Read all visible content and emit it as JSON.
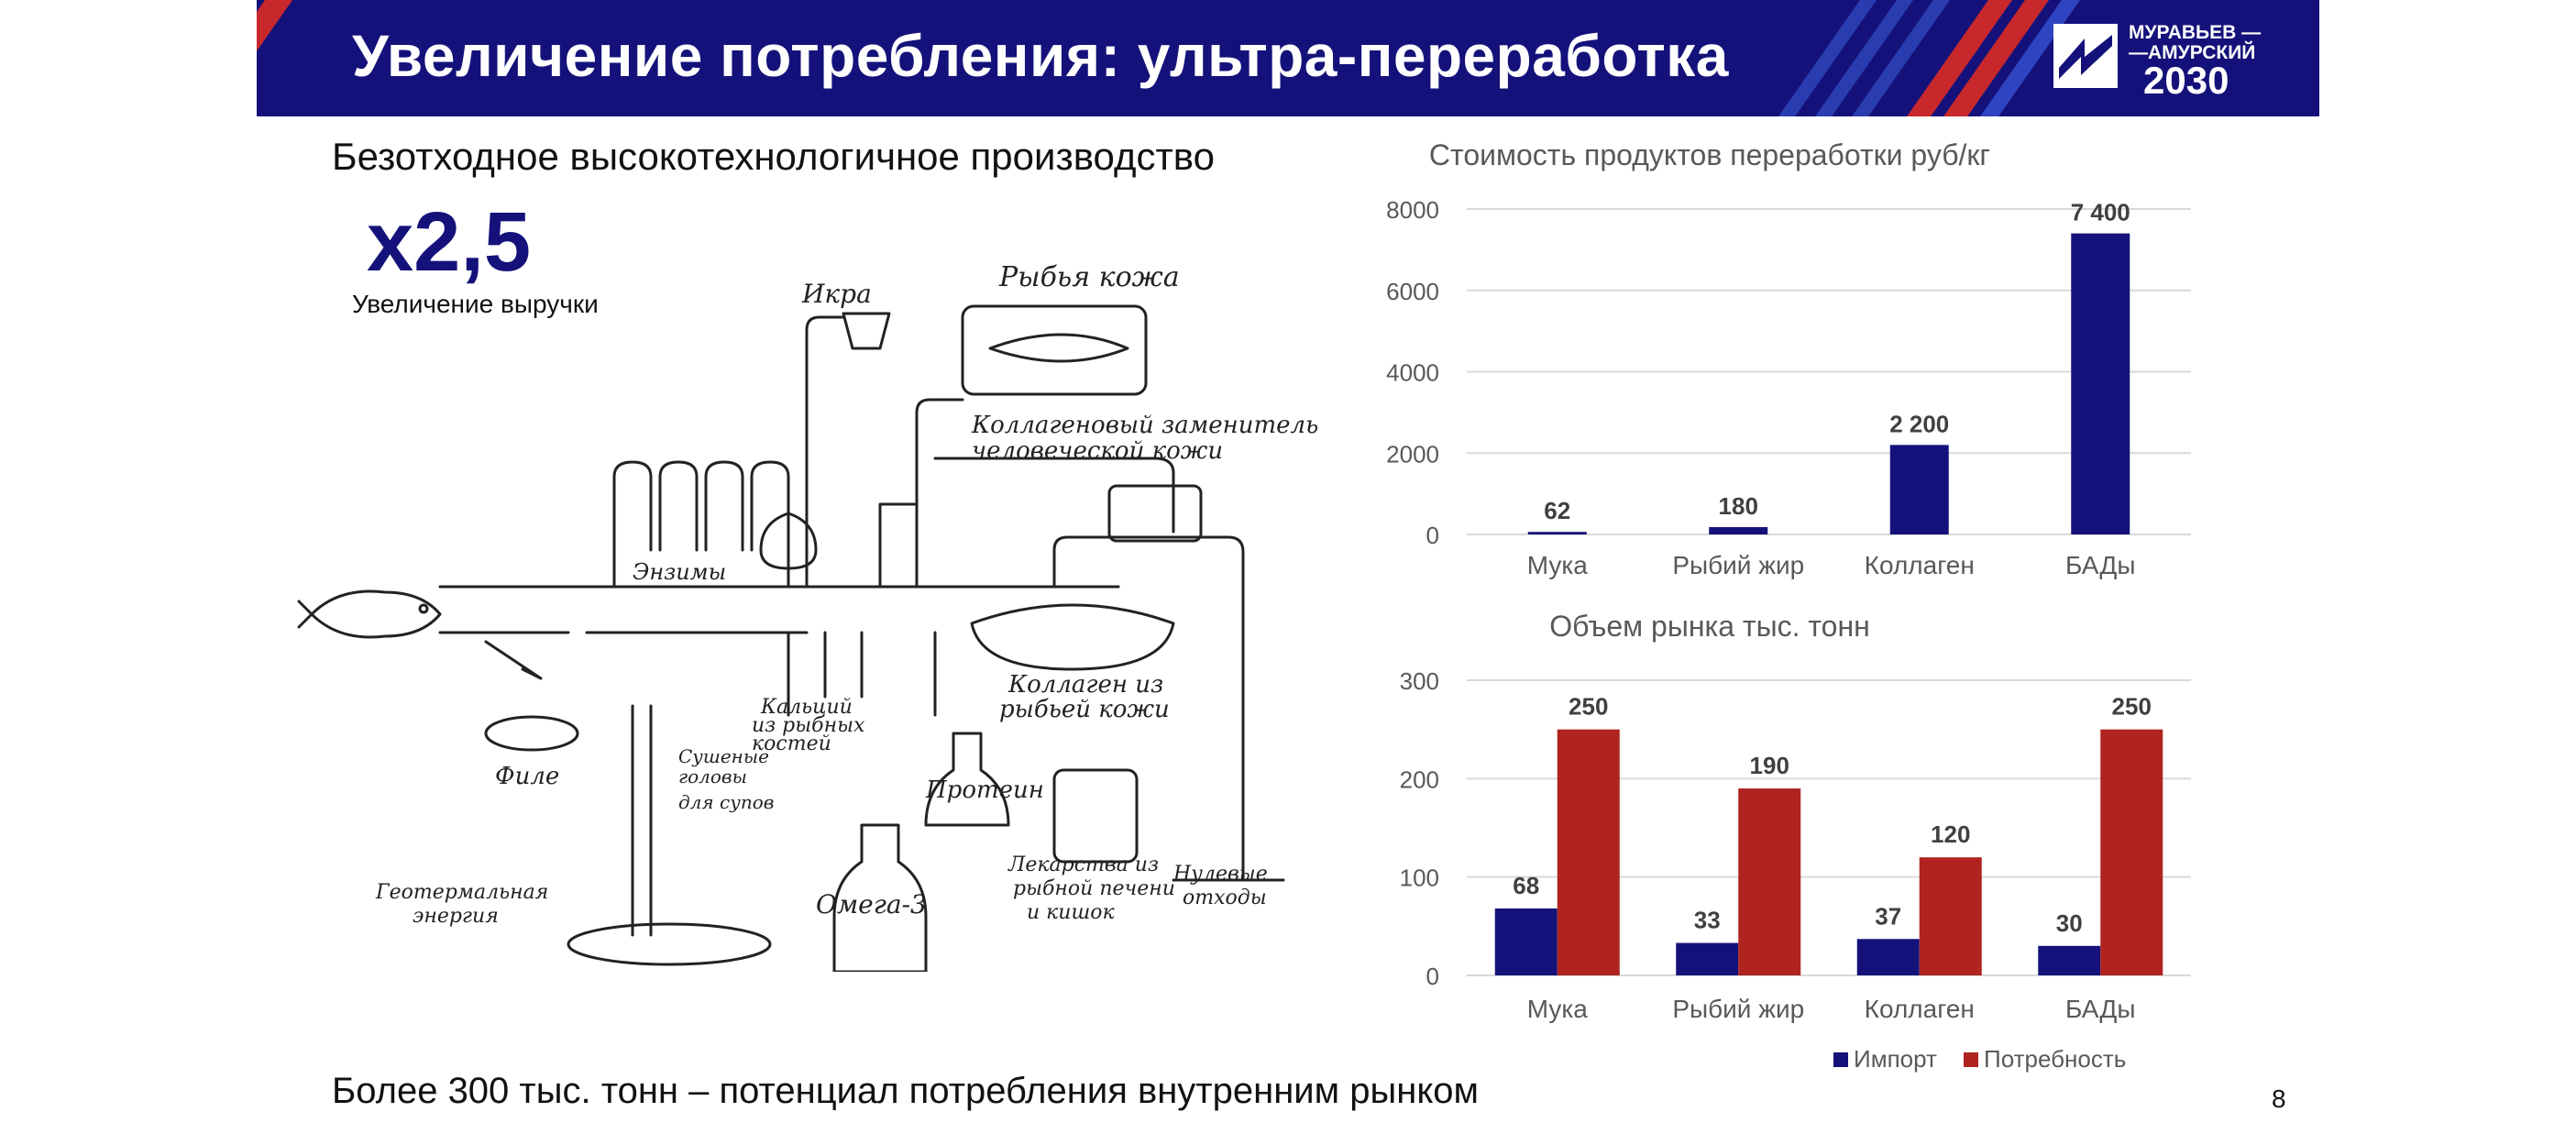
{
  "header": {
    "title": "Увеличение потребления: ультра-переработка",
    "logo_line1": "МУРАВЬЕВ —",
    "logo_line2": "—АМУРСКИЙ",
    "logo_line3": "2030"
  },
  "left": {
    "heading": "Безотходное высокотехнологичное производство",
    "multiplier": "x2,5",
    "multiplier_label": "Увеличение выручки",
    "diagram_labels": {
      "ikra": "Икра",
      "skin": "Рыбья кожа",
      "collagen_sub1": "Коллагеновый заменитель",
      "collagen_sub2": "человеческой кожи",
      "enzymes": "Энзимы",
      "calcium1": "Кальций",
      "calcium2": "из рыбных",
      "calcium3": "костей",
      "collagen_from1": "Коллаген из",
      "collagen_from2": "рыбьей кожи",
      "fillet": "Филе",
      "heads1": "Сушеные",
      "heads2": "головы",
      "heads3": "для супов",
      "protein": "Протеин",
      "drugs1": "Лекарства из",
      "drugs2": "рыбной печени",
      "drugs3": "и кишок",
      "zero1": "Нулевые",
      "zero2": "отходы",
      "geo1": "Геотермальная",
      "geo2": "энергия",
      "omega": "Омега-3"
    }
  },
  "bottom_text": "Более 300 тыс. тонн – потенциал потребления внутренним рынком",
  "page_number": "8",
  "colors": {
    "navy": "#14127a",
    "red": "#b0231f",
    "grid": "#d9d9d9",
    "axis_text": "#595959"
  },
  "chart_data": [
    {
      "type": "bar",
      "title": "Стоимость продуктов переработки руб/кг",
      "categories": [
        "Мука",
        "Рыбий жир",
        "Коллаген",
        "БАДы"
      ],
      "values": [
        62,
        180,
        2200,
        7400
      ],
      "value_labels": [
        "62",
        "180",
        "2 200",
        "7 400"
      ],
      "yticks": [
        "0",
        "2000",
        "4000",
        "6000",
        "8000"
      ],
      "ylim": [
        0,
        8000
      ],
      "grid": true
    },
    {
      "type": "bar",
      "title": "Объем рынка тыс. тонн",
      "categories": [
        "Мука",
        "Рыбий жир",
        "Коллаген",
        "БАДы"
      ],
      "series": [
        {
          "name": "Импорт",
          "values": [
            68,
            33,
            37,
            30
          ]
        },
        {
          "name": "Потребность",
          "values": [
            250,
            190,
            120,
            250
          ]
        }
      ],
      "yticks": [
        "0",
        "100",
        "200",
        "300"
      ],
      "ylim": [
        0,
        300
      ],
      "grid": true,
      "legend": "bottom"
    }
  ]
}
